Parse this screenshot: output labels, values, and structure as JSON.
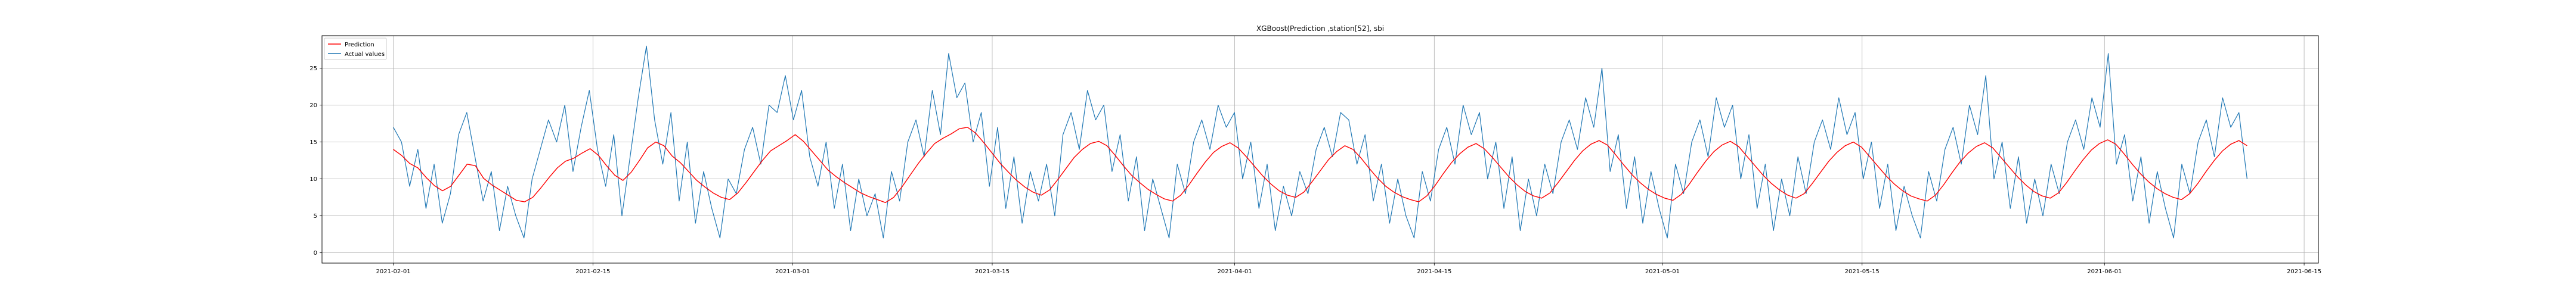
{
  "chart_data": {
    "type": "line",
    "title": "XGBoost(Prediction ,station[52], sbi",
    "xlabel": "",
    "ylabel": "",
    "x_start": "2021-02-01",
    "x_end": "2021-06-11",
    "xlim": [
      "2021-01-27",
      "2021-06-16"
    ],
    "ylim": [
      -1.4,
      29.4
    ],
    "grid": true,
    "legend_position": "top-left",
    "x_ticks": [
      "2021-02-01",
      "2021-02-15",
      "2021-03-01",
      "2021-03-15",
      "2021-04-01",
      "2021-04-15",
      "2021-05-01",
      "2021-05-15",
      "2021-06-01",
      "2021-06-15"
    ],
    "y_ticks": [
      0,
      5,
      10,
      15,
      20,
      25
    ],
    "y_tick_labels": [
      "0",
      "5",
      "10",
      "15",
      "20",
      "25"
    ],
    "series": [
      {
        "name": "Prediction",
        "color": "#ff0000",
        "values": [
          14.0,
          13.2,
          12.1,
          11.5,
          10.2,
          9.1,
          8.4,
          9.0,
          10.5,
          12.0,
          11.8,
          10.1,
          9.2,
          8.5,
          7.8,
          7.1,
          6.9,
          7.5,
          8.8,
          10.2,
          11.5,
          12.4,
          12.8,
          13.5,
          14.1,
          13.2,
          11.8,
          10.5,
          9.8,
          10.9,
          12.5,
          14.2,
          15.0,
          14.5,
          13.1,
          12.2,
          11.0,
          9.8,
          8.9,
          8.1,
          7.5,
          7.2,
          8.1,
          9.5,
          11.0,
          12.5,
          13.8,
          14.5,
          15.2,
          16.0,
          15.1,
          13.8,
          12.5,
          11.2,
          10.3,
          9.5,
          8.8,
          8.1,
          7.6,
          7.2,
          6.8,
          7.5,
          8.9,
          10.5,
          12.1,
          13.5,
          14.8,
          15.5,
          16.1,
          16.8,
          17.0,
          16.2,
          14.9,
          13.5,
          12.1,
          10.9,
          9.8,
          8.9,
          8.2,
          7.8,
          8.5,
          9.9,
          11.4,
          12.9,
          14.0,
          14.8,
          15.1,
          14.5,
          13.2,
          11.8,
          10.5,
          9.5,
          8.6,
          7.9,
          7.3,
          7.0,
          7.8,
          9.2,
          10.8,
          12.3,
          13.6,
          14.4,
          14.9,
          14.2,
          13.0,
          11.7,
          10.4,
          9.3,
          8.4,
          7.8,
          7.5,
          8.2,
          9.6,
          11.1,
          12.6,
          13.7,
          14.5,
          14.0,
          12.8,
          11.4,
          10.1,
          9.0,
          8.2,
          7.6,
          7.2,
          6.9,
          7.7,
          9.1,
          10.7,
          12.2,
          13.4,
          14.3,
          14.8,
          14.1,
          12.9,
          11.6,
          10.3,
          9.2,
          8.3,
          7.7,
          7.4,
          8.1,
          9.5,
          11.0,
          12.5,
          13.8,
          14.7,
          15.2,
          14.6,
          13.3,
          11.9,
          10.6,
          9.5,
          8.6,
          7.9,
          7.4,
          7.1,
          7.9,
          9.3,
          10.9,
          12.4,
          13.7,
          14.6,
          15.1,
          14.4,
          13.1,
          11.8,
          10.5,
          9.4,
          8.5,
          7.8,
          7.4,
          8.0,
          9.4,
          10.9,
          12.4,
          13.6,
          14.5,
          15.0,
          14.3,
          13.0,
          11.7,
          10.4,
          9.3,
          8.4,
          7.7,
          7.3,
          7.0,
          7.8,
          9.2,
          10.8,
          12.3,
          13.5,
          14.4,
          14.9,
          14.2,
          12.9,
          11.6,
          10.3,
          9.2,
          8.3,
          7.7,
          7.4,
          8.1,
          9.5,
          11.1,
          12.6,
          13.9,
          14.8,
          15.3,
          14.7,
          13.4,
          12.0,
          10.7,
          9.6,
          8.7,
          8.0,
          7.5,
          7.2,
          8.0,
          9.4,
          11.0,
          12.5,
          13.8,
          14.7,
          15.2,
          14.5
        ]
      },
      {
        "name": "Actual values",
        "color": "#1f77b4",
        "values": [
          17.0,
          15.0,
          9.0,
          14.0,
          6.0,
          12.0,
          4.0,
          8.0,
          16.0,
          19.0,
          13.0,
          7.0,
          11.0,
          3.0,
          9.0,
          5.0,
          2.0,
          10.0,
          14.0,
          18.0,
          15.0,
          20.0,
          11.0,
          17.0,
          22.0,
          14.0,
          9.0,
          16.0,
          5.0,
          13.0,
          21.0,
          28.0,
          18.0,
          12.0,
          19.0,
          7.0,
          15.0,
          4.0,
          11.0,
          6.0,
          2.0,
          10.0,
          8.0,
          14.0,
          17.0,
          12.0,
          20.0,
          19.0,
          24.0,
          18.0,
          22.0,
          13.0,
          9.0,
          15.0,
          6.0,
          12.0,
          3.0,
          10.0,
          5.0,
          8.0,
          2.0,
          11.0,
          7.0,
          15.0,
          18.0,
          13.0,
          22.0,
          16.0,
          27.0,
          21.0,
          23.0,
          15.0,
          19.0,
          9.0,
          17.0,
          6.0,
          13.0,
          4.0,
          11.0,
          7.0,
          12.0,
          5.0,
          16.0,
          19.0,
          14.0,
          22.0,
          18.0,
          20.0,
          11.0,
          16.0,
          7.0,
          13.0,
          3.0,
          10.0,
          6.0,
          2.0,
          12.0,
          8.0,
          15.0,
          18.0,
          14.0,
          20.0,
          17.0,
          19.0,
          10.0,
          15.0,
          6.0,
          12.0,
          3.0,
          9.0,
          5.0,
          11.0,
          8.0,
          14.0,
          17.0,
          13.0,
          19.0,
          18.0,
          12.0,
          16.0,
          7.0,
          12.0,
          4.0,
          10.0,
          5.0,
          2.0,
          11.0,
          7.0,
          14.0,
          17.0,
          12.0,
          20.0,
          16.0,
          19.0,
          10.0,
          15.0,
          6.0,
          13.0,
          3.0,
          10.0,
          5.0,
          12.0,
          8.0,
          15.0,
          18.0,
          14.0,
          21.0,
          17.0,
          25.0,
          11.0,
          16.0,
          6.0,
          13.0,
          4.0,
          11.0,
          6.0,
          2.0,
          12.0,
          8.0,
          15.0,
          18.0,
          13.0,
          21.0,
          17.0,
          20.0,
          10.0,
          16.0,
          6.0,
          12.0,
          3.0,
          10.0,
          5.0,
          13.0,
          8.0,
          15.0,
          18.0,
          14.0,
          21.0,
          16.0,
          19.0,
          10.0,
          15.0,
          6.0,
          12.0,
          3.0,
          9.0,
          5.0,
          2.0,
          11.0,
          7.0,
          14.0,
          17.0,
          12.0,
          20.0,
          16.0,
          24.0,
          10.0,
          15.0,
          6.0,
          13.0,
          4.0,
          10.0,
          5.0,
          12.0,
          8.0,
          15.0,
          18.0,
          14.0,
          21.0,
          17.0,
          27.0,
          12.0,
          16.0,
          7.0,
          13.0,
          4.0,
          11.0,
          6.0,
          2.0,
          12.0,
          8.0,
          15.0,
          18.0,
          13.0,
          21.0,
          17.0,
          19.0,
          10.0
        ]
      }
    ]
  }
}
